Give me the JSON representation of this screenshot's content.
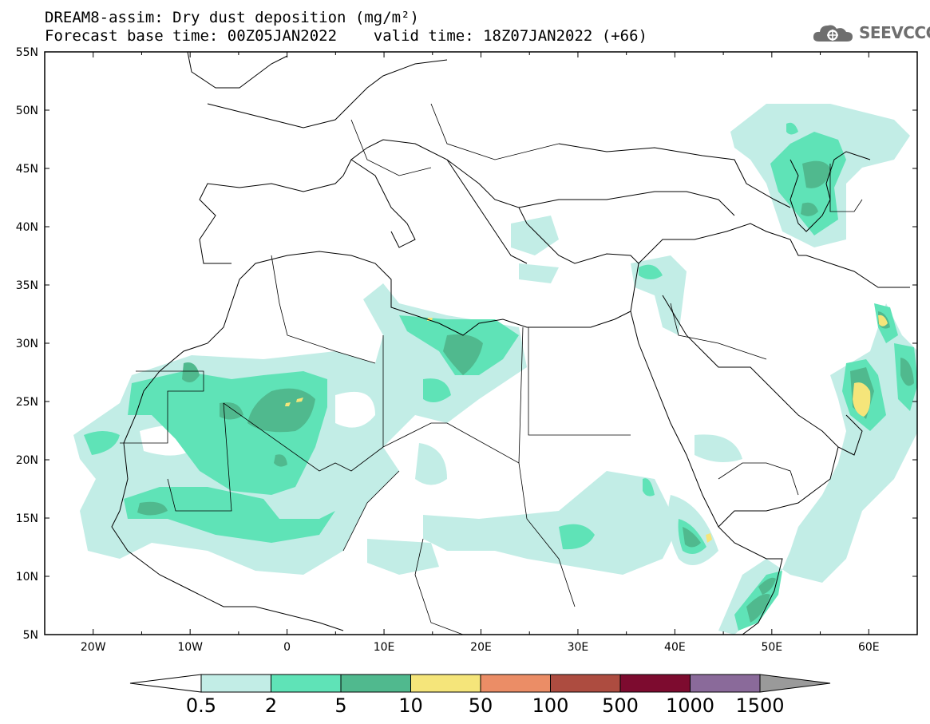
{
  "header": {
    "title_line1": "DREAM8-assim: Dry dust deposition (mg/m²)",
    "title_line2": "Forecast base time: 00Z05JAN2022    valid time: 18Z07JAN2022 (+66)",
    "logo_text": "SEEVCCC",
    "logo_icon": "cloud-gear-icon"
  },
  "map": {
    "lon_range": [
      -25,
      65
    ],
    "lat_range": [
      5,
      55
    ],
    "lat_labels": [
      "55N",
      "50N",
      "45N",
      "40N",
      "35N",
      "30N",
      "25N",
      "20N",
      "15N",
      "10N",
      "5N"
    ],
    "lon_labels": [
      "20W",
      "10W",
      "0",
      "10E",
      "20E",
      "30E",
      "40E",
      "50E",
      "60E"
    ]
  },
  "legend": {
    "labels": [
      "0.5",
      "2",
      "5",
      "10",
      "50",
      "100",
      "500",
      "1000",
      "1500"
    ],
    "colors": [
      "#c2ede6",
      "#5fe3b7",
      "#50b98e",
      "#f5e57a",
      "#eb8d66",
      "#ad4c40",
      "#7d0b2f",
      "#8a6a9a",
      "#9a9a9a"
    ],
    "arrow_left_color": "#ffffff"
  }
}
